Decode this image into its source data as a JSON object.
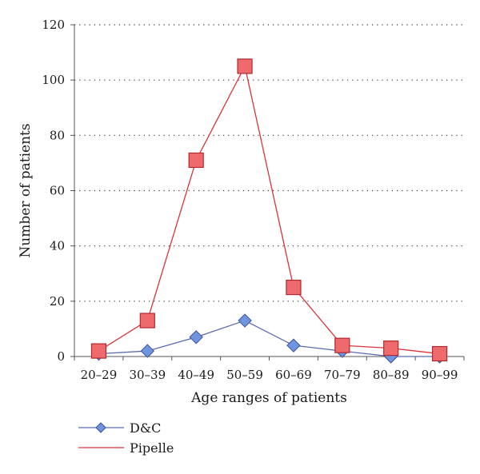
{
  "chart_data": {
    "type": "line",
    "categories": [
      "20–29",
      "30–39",
      "40–49",
      "50–59",
      "60–69",
      "70–79",
      "80–89",
      "90–99"
    ],
    "series": [
      {
        "name": "D&C",
        "values": [
          1,
          2,
          7,
          13,
          4,
          2,
          0,
          0
        ],
        "color": "#5a6ab0",
        "marker": "diamond",
        "marker_fill": "#6f94e0"
      },
      {
        "name": "Pipelle",
        "values": [
          2,
          13,
          71,
          105,
          25,
          4,
          3,
          1
        ],
        "color": "#d9343a",
        "marker": "square",
        "marker_fill": "#ee6a6c"
      }
    ],
    "xlabel": "Age ranges of patients",
    "ylabel": "Number of patients",
    "ylim": [
      0,
      120
    ],
    "yticks": [
      0,
      20,
      40,
      60,
      80,
      100,
      120
    ],
    "grid": "horizontal-dotted",
    "legend_position": "bottom-left"
  }
}
